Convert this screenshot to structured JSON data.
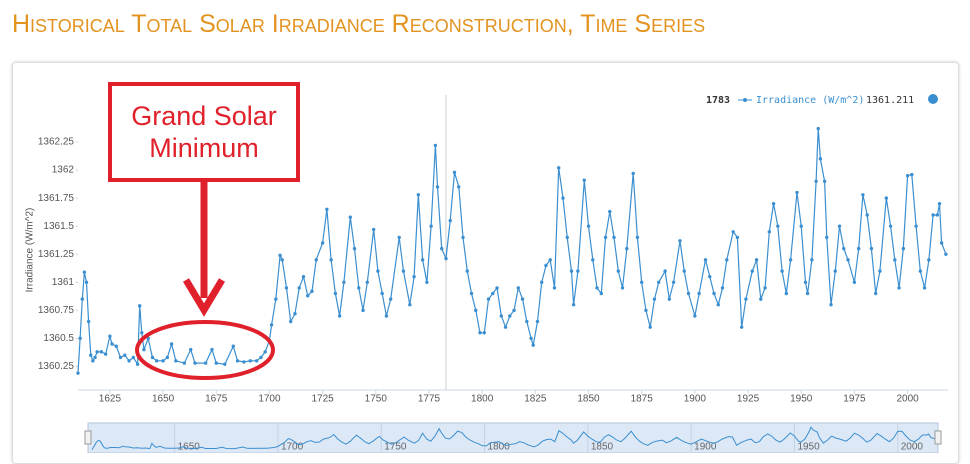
{
  "header": {
    "title": "Historical Total Solar Irradiance Reconstruction, Time Series"
  },
  "chart_data": {
    "type": "line",
    "ylabel": "Irradiance (W/m^2)",
    "x": [
      1610,
      1611,
      1612,
      1613,
      1614,
      1615,
      1616,
      1617,
      1618,
      1619,
      1621,
      1623,
      1625,
      1626,
      1628,
      1630,
      1632,
      1634,
      1636,
      1638,
      1639,
      1640,
      1641,
      1643,
      1645,
      1647,
      1650,
      1652,
      1654,
      1656,
      1660,
      1663,
      1665,
      1670,
      1673,
      1675,
      1679,
      1683,
      1685,
      1688,
      1691,
      1694,
      1696,
      1698,
      1700,
      1701,
      1703,
      1705,
      1706,
      1708,
      1710,
      1712,
      1714,
      1716,
      1718,
      1720,
      1722,
      1725,
      1727,
      1729,
      1731,
      1733,
      1735,
      1738,
      1740,
      1742,
      1744,
      1746,
      1749,
      1751,
      1753,
      1755,
      1757,
      1761,
      1763,
      1766,
      1768,
      1770,
      1772,
      1774,
      1776,
      1778,
      1779,
      1781,
      1783,
      1785,
      1787,
      1789,
      1791,
      1793,
      1795,
      1797,
      1799,
      1801,
      1803,
      1805,
      1807,
      1809,
      1811,
      1813,
      1815,
      1817,
      1819,
      1821,
      1823,
      1824,
      1826,
      1828,
      1830,
      1832,
      1834,
      1836,
      1838,
      1840,
      1842,
      1843,
      1845,
      1848,
      1850,
      1852,
      1854,
      1856,
      1858,
      1860,
      1862,
      1864,
      1866,
      1868,
      1871,
      1873,
      1875,
      1877,
      1879,
      1881,
      1883,
      1886,
      1888,
      1890,
      1893,
      1895,
      1897,
      1900,
      1902,
      1905,
      1907,
      1909,
      1911,
      1913,
      1915,
      1918,
      1920,
      1922,
      1924,
      1927,
      1929,
      1931,
      1933,
      1935,
      1937,
      1939,
      1941,
      1943,
      1945,
      1948,
      1950,
      1952,
      1953,
      1955,
      1957,
      1958,
      1959,
      1961,
      1962,
      1964,
      1966,
      1968,
      1970,
      1972,
      1975,
      1977,
      1979,
      1981,
      1983,
      1985,
      1987,
      1990,
      1992,
      1994,
      1996,
      1998,
      2000,
      2002,
      2004,
      2006,
      2008,
      2010,
      2012,
      2014,
      2015,
      2016,
      2018
    ],
    "series": [
      {
        "name": "Irradiance (W/m^2)",
        "color": "#3b8fd0",
        "values": [
          1360.19,
          1360.5,
          1360.85,
          1361.09,
          1361.0,
          1360.65,
          1360.35,
          1360.3,
          1360.33,
          1360.38,
          1360.38,
          1360.36,
          1360.52,
          1360.45,
          1360.43,
          1360.33,
          1360.35,
          1360.3,
          1360.33,
          1360.27,
          1360.79,
          1360.55,
          1360.4,
          1360.5,
          1360.33,
          1360.3,
          1360.3,
          1360.33,
          1360.45,
          1360.3,
          1360.28,
          1360.4,
          1360.28,
          1360.28,
          1360.4,
          1360.28,
          1360.27,
          1360.43,
          1360.3,
          1360.29,
          1360.3,
          1360.3,
          1360.33,
          1360.38,
          1360.48,
          1360.62,
          1360.85,
          1361.24,
          1361.2,
          1360.95,
          1360.65,
          1360.72,
          1360.95,
          1361.05,
          1360.88,
          1360.92,
          1361.2,
          1361.35,
          1361.65,
          1361.2,
          1360.9,
          1360.7,
          1361.0,
          1361.58,
          1361.3,
          1360.95,
          1360.75,
          1361.0,
          1361.47,
          1361.1,
          1360.9,
          1360.7,
          1360.85,
          1361.4,
          1361.1,
          1360.8,
          1361.05,
          1361.78,
          1361.2,
          1361.0,
          1361.5,
          1362.22,
          1361.85,
          1361.3,
          1361.211,
          1361.55,
          1361.98,
          1361.85,
          1361.4,
          1361.1,
          1360.9,
          1360.75,
          1360.55,
          1360.55,
          1360.85,
          1360.9,
          1360.95,
          1360.7,
          1360.6,
          1360.7,
          1360.75,
          1360.95,
          1360.85,
          1360.65,
          1360.5,
          1360.44,
          1360.65,
          1361.0,
          1361.15,
          1361.2,
          1360.95,
          1362.02,
          1361.75,
          1361.4,
          1361.1,
          1360.8,
          1361.1,
          1361.91,
          1361.5,
          1361.2,
          1360.95,
          1360.9,
          1361.4,
          1361.63,
          1361.4,
          1361.1,
          1360.95,
          1361.3,
          1361.97,
          1361.4,
          1361.0,
          1360.75,
          1360.6,
          1360.85,
          1361.0,
          1361.1,
          1360.85,
          1361.0,
          1361.37,
          1361.1,
          1360.9,
          1360.7,
          1360.9,
          1361.2,
          1361.05,
          1360.9,
          1360.8,
          1360.95,
          1361.2,
          1361.45,
          1361.4,
          1360.6,
          1360.85,
          1361.1,
          1361.2,
          1360.85,
          1360.95,
          1361.45,
          1361.7,
          1361.5,
          1361.1,
          1360.9,
          1361.2,
          1361.8,
          1361.5,
          1361.0,
          1360.9,
          1361.2,
          1361.9,
          1362.37,
          1362.1,
          1361.9,
          1361.4,
          1360.8,
          1361.1,
          1361.5,
          1361.3,
          1361.2,
          1361.0,
          1361.3,
          1361.78,
          1361.6,
          1361.3,
          1360.9,
          1361.1,
          1361.75,
          1361.5,
          1361.2,
          1360.95,
          1361.3,
          1361.95,
          1361.96,
          1361.5,
          1361.1,
          1360.95,
          1361.2,
          1361.6,
          1361.6,
          1361.7,
          1361.35,
          1361.25
        ]
      }
    ],
    "xlim": [
      1610,
      2019
    ],
    "ylim": [
      1360.04,
      1362.58
    ],
    "xticks": [
      1625,
      1650,
      1675,
      1700,
      1725,
      1750,
      1775,
      1800,
      1825,
      1850,
      1875,
      1900,
      1925,
      1950,
      1975,
      2000
    ],
    "yticks": [
      1360.25,
      1360.5,
      1360.75,
      1361,
      1361.25,
      1361.5,
      1361.75,
      1362,
      1362.25
    ],
    "tooltip": {
      "x": 1783,
      "value": 1361.211
    },
    "annotation": {
      "text": "Grand Solar Minimum"
    },
    "navigator": {
      "xlim": [
        1610,
        2019
      ],
      "xticks": [
        1650,
        1700,
        1750,
        1800,
        1850,
        1900,
        1950,
        2000
      ]
    }
  }
}
